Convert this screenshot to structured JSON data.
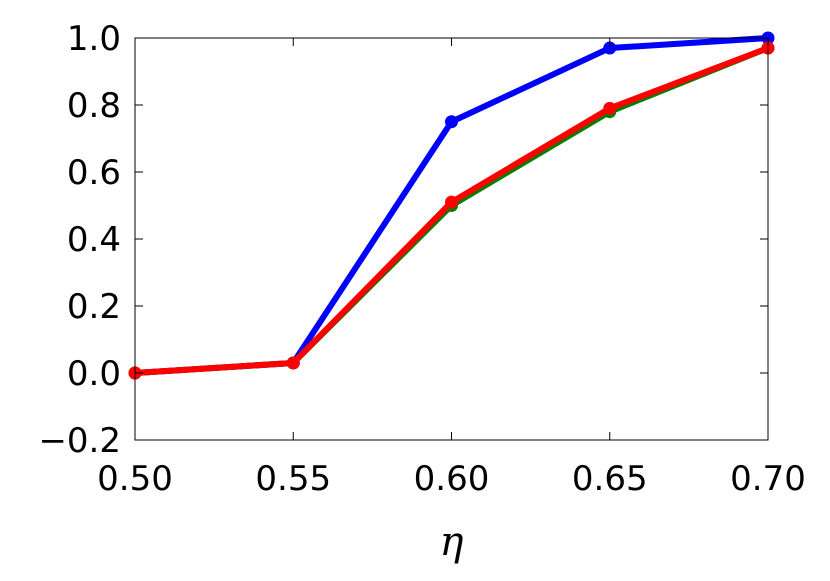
{
  "chart_data": {
    "type": "line",
    "xlabel": "η",
    "ylabel": "",
    "xlim": [
      0.5,
      0.7
    ],
    "ylim": [
      -0.2,
      1.0
    ],
    "xticks": [
      "0.50",
      "0.55",
      "0.60",
      "0.65",
      "0.70"
    ],
    "yticks": [
      "−0.2",
      "0.0",
      "0.2",
      "0.4",
      "0.6",
      "0.8",
      "1.0"
    ],
    "grid": false,
    "x": [
      0.5,
      0.55,
      0.6,
      0.65,
      0.7
    ],
    "series": [
      {
        "color": "#0000ff",
        "values": [
          0.0,
          0.03,
          0.75,
          0.97,
          1.0
        ]
      },
      {
        "color": "#008000",
        "values": [
          0.0,
          0.03,
          0.5,
          0.78,
          0.97
        ]
      },
      {
        "color": "#ff0000",
        "values": [
          0.0,
          0.03,
          0.51,
          0.79,
          0.97
        ]
      }
    ]
  }
}
